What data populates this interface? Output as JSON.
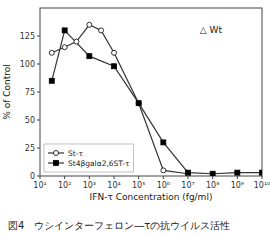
{
  "chart_data": {
    "type": "line",
    "xlabel": "IFN-τ Concentration (fg/ml)",
    "ylabel": "% of Control",
    "caption": "図4　ウシインターフェロン―τの抗ウイルス活性",
    "annotation": "△ Wt",
    "log": "x",
    "grid": false,
    "legend": "lower left",
    "xlim": [
      10,
      10000000000
    ],
    "xticks": [
      {
        "value": 10,
        "label": "10¹"
      },
      {
        "value": 100,
        "label": "10²"
      },
      {
        "value": 1000,
        "label": "10³"
      },
      {
        "value": 10000,
        "label": "10⁴"
      },
      {
        "value": 100000,
        "label": "10⁵"
      },
      {
        "value": 1000000,
        "label": "10⁶"
      },
      {
        "value": 10000000,
        "label": "10⁷"
      },
      {
        "value": 100000000,
        "label": "10⁸"
      },
      {
        "value": 1000000000,
        "label": "10⁹"
      },
      {
        "value": 10000000000,
        "label": "10¹⁰"
      }
    ],
    "ylim": [
      0,
      150
    ],
    "yticks": [
      0,
      25,
      50,
      75,
      100,
      125
    ],
    "series": [
      {
        "name": "St-τ",
        "color": "#333333",
        "marker": "circle",
        "x": [
          30,
          100,
          300,
          1000,
          3000,
          10000,
          100000,
          1000000,
          10000000
        ],
        "values": [
          110,
          115,
          120,
          135,
          130,
          110,
          65,
          5,
          2
        ]
      },
      {
        "name": "St4βgalα2,6ST-τ",
        "color": "#333333",
        "marker": "square",
        "x": [
          30,
          100,
          1000,
          10000,
          100000,
          1000000,
          10000000,
          100000000,
          1000000000,
          10000000000
        ],
        "values": [
          85,
          130,
          107,
          98,
          65,
          30,
          3,
          2,
          3,
          3
        ]
      }
    ]
  }
}
